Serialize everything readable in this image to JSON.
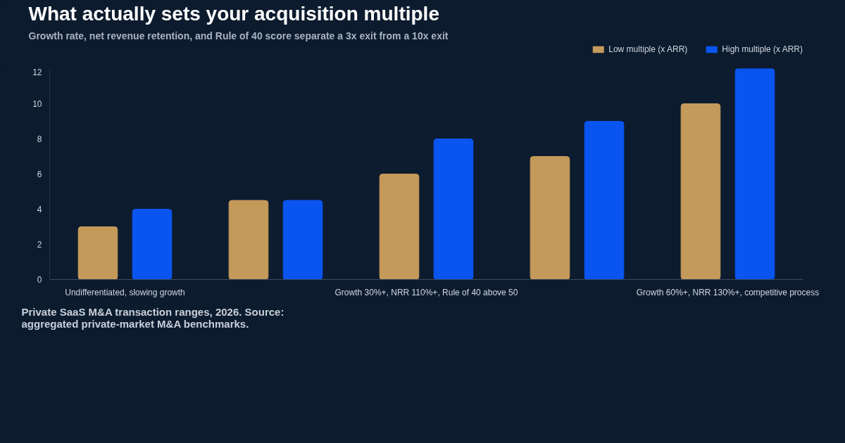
{
  "chart_data": {
    "type": "bar",
    "title": "What actually sets your acquisition multiple",
    "subtitle": "Growth rate, net revenue retention, and Rule of 40 score separate a 3x exit from a 10x exit",
    "categories": [
      "Undifferentiated, slowing growth",
      null,
      "Growth 30%+, NRR 110%+, Rule of 40 above 50",
      null,
      "Growth 60%+, NRR 130%+, competitive process"
    ],
    "series": [
      {
        "name": "Low multiple (x ARR)",
        "color": "#c49a5a",
        "values": [
          3,
          4.5,
          6,
          7,
          10
        ]
      },
      {
        "name": "High multiple (x ARR)",
        "color": "#0a55f0",
        "values": [
          4,
          4.5,
          8,
          9,
          12
        ]
      }
    ],
    "ylim": [
      0,
      12
    ],
    "yticks": [
      0,
      2,
      4,
      6,
      8,
      10,
      12
    ],
    "legend": "top right",
    "annotations": [
      "Private SaaS M&A transaction ranges, 2026. Source: aggregated private-market M&A benchmarks."
    ]
  }
}
